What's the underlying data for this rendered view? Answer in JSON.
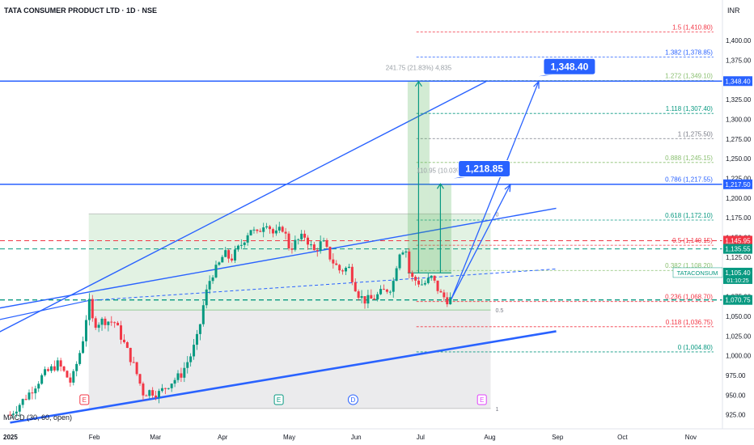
{
  "header": {
    "symbol_title": "TATA CONSUMER PRODUCT LTD · 1D · NSE",
    "currency": "INR"
  },
  "indicator_label": "MACD (30, 60, open)",
  "chart_data": {
    "type": "candlestick",
    "y_ticks": [
      925,
      950,
      975,
      1000,
      1025,
      1050,
      1075,
      1100,
      1125,
      1150,
      1175,
      1200,
      1225,
      1250,
      1275,
      1300,
      1325,
      1350,
      1375,
      1400
    ],
    "y_tick_labels": [
      "925.00",
      "950.00",
      "975.00",
      "1,000.00",
      "1,025.00",
      "1,050.00",
      "1,075.00",
      "1,100.00",
      "1,125.00",
      "1,150.00",
      "1,175.00",
      "1,200.00",
      "1,225.00",
      "1,250.00",
      "1,275.00",
      "1,300.00",
      "1,325.00",
      "1,350.00",
      "1,375.00",
      "1,400.00"
    ],
    "x_ticks": [
      {
        "label": "2025",
        "day": 0,
        "bold": true
      },
      {
        "label": "Feb",
        "day": 31
      },
      {
        "label": "Mar",
        "day": 59
      },
      {
        "label": "Apr",
        "day": 90
      },
      {
        "label": "May",
        "day": 120
      },
      {
        "label": "Jun",
        "day": 151
      },
      {
        "label": "Jul",
        "day": 181
      },
      {
        "label": "Aug",
        "day": 212
      },
      {
        "label": "Sep",
        "day": 243
      },
      {
        "label": "Oct",
        "day": 273
      },
      {
        "label": "Nov",
        "day": 304
      }
    ],
    "price_path": [
      [
        -5,
        925
      ],
      [
        3,
        950
      ],
      [
        10,
        975
      ],
      [
        17,
        990
      ],
      [
        23,
        965
      ],
      [
        28,
        1015
      ],
      [
        31,
        1070
      ],
      [
        33,
        1040
      ],
      [
        38,
        1045
      ],
      [
        43,
        1042
      ],
      [
        48,
        1010
      ],
      [
        52,
        985
      ],
      [
        56,
        952
      ],
      [
        59,
        955
      ],
      [
        63,
        952
      ],
      [
        68,
        965
      ],
      [
        73,
        975
      ],
      [
        78,
        1002
      ],
      [
        81,
        1025
      ],
      [
        84,
        1072
      ],
      [
        87,
        1102
      ],
      [
        90,
        1112
      ],
      [
        93,
        1130
      ],
      [
        96,
        1122
      ],
      [
        101,
        1142
      ],
      [
        105,
        1162
      ],
      [
        108,
        1153
      ],
      [
        112,
        1172
      ],
      [
        114,
        1162
      ],
      [
        116,
        1152
      ],
      [
        120,
        1163
      ],
      [
        123,
        1135
      ],
      [
        126,
        1145
      ],
      [
        130,
        1152
      ],
      [
        134,
        1132
      ],
      [
        138,
        1145
      ],
      [
        142,
        1122
      ],
      [
        146,
        1108
      ],
      [
        150,
        1112
      ],
      [
        154,
        1080
      ],
      [
        157,
        1070
      ],
      [
        161,
        1072
      ],
      [
        165,
        1080
      ],
      [
        170,
        1088
      ],
      [
        173,
        1132
      ],
      [
        176,
        1138
      ],
      [
        178,
        1100
      ],
      [
        181,
        1095
      ],
      [
        184,
        1090
      ],
      [
        188,
        1099
      ],
      [
        192,
        1078
      ],
      [
        195,
        1071
      ],
      [
        197,
        1072
      ]
    ],
    "last_price": 1105.4,
    "candle_label": "TATACONSUM",
    "countdown": "01:10:25",
    "horizontal_levels": [
      {
        "price": 1348.4,
        "label": "1,348.40",
        "color": "#2962ff",
        "style": "solid",
        "width": 1.6
      },
      {
        "price": 1217.5,
        "label": "1,217.50",
        "color": "#2962ff",
        "style": "solid",
        "width": 1.6
      },
      {
        "price": 1145.95,
        "label": "1,145.95",
        "color": "#f23645",
        "style": "dashed",
        "width": 1
      },
      {
        "price": 1135.55,
        "label": "1,135.55",
        "color": "#089981",
        "style": "dashed",
        "width": 1
      },
      {
        "price": 1070.75,
        "label": "1,070.75",
        "color": "#089981",
        "style": "dashed",
        "width": 1.4
      }
    ],
    "fib_levels": [
      {
        "price": 1410.8,
        "label": "1.5 (1,410.80)",
        "color": "#f23645"
      },
      {
        "price": 1378.85,
        "label": "1.382 (1,378.85)",
        "color": "#2962ff"
      },
      {
        "price": 1349.1,
        "label": "1.272 (1,349.10)",
        "color": "#89bf6f"
      },
      {
        "price": 1307.4,
        "label": "1.118 (1,307.40)",
        "color": "#089981"
      },
      {
        "price": 1275.5,
        "label": "1 (1,275.50)",
        "color": "#787b86"
      },
      {
        "price": 1245.15,
        "label": "0.888 (1,245.15)",
        "color": "#89bf6f"
      },
      {
        "price": 1217.55,
        "label": "0.786 (1,217.55)",
        "color": "#2962ff"
      },
      {
        "price": 1172.1,
        "label": "0.618 (1,172.10)",
        "color": "#089981"
      },
      {
        "price": 1140.15,
        "label": "0.5 (1,140.15)",
        "color": "#f23645"
      },
      {
        "price": 1108.2,
        "label": "0.382 (1,108.20)",
        "color": "#89bf6f"
      },
      {
        "price": 1068.7,
        "label": "0.236 (1,068.70)",
        "color": "#f23645"
      },
      {
        "price": 1036.75,
        "label": "0.118 (1,036.75)",
        "color": "#f23645"
      },
      {
        "price": 1004.8,
        "label": "0 (1,004.80)",
        "color": "#089981"
      }
    ],
    "range_box": {
      "day_start": 31,
      "day_end": 215,
      "top": 1180,
      "mid": 1058,
      "bottom": 933,
      "labels": [
        "0",
        "0.5",
        "1"
      ]
    },
    "trendlines": [
      {
        "from": [
          -45,
          980
        ],
        "to": [
          213,
          1348
        ],
        "color": "#2962ff",
        "width": 1.4
      },
      {
        "from": [
          -45,
          1043
        ],
        "to": [
          245,
          1187
        ],
        "color": "#2962ff",
        "width": 1.4
      },
      {
        "from": [
          -5,
          915
        ],
        "to": [
          245,
          1031
        ],
        "color": "#2962ff",
        "width": 2.6
      },
      {
        "from": [
          -45,
          1025
        ],
        "to": [
          31,
          1070
        ],
        "color": "#2962ff",
        "width": 1.2
      },
      {
        "from": [
          31,
          1070
        ],
        "to": [
          245,
          1110
        ],
        "color": "#2962ff",
        "width": 1,
        "dashed": true
      }
    ],
    "projections": [
      {
        "from": [
          197,
          1072
        ],
        "to": [
          237,
          1348
        ],
        "color": "#2962ff"
      },
      {
        "from": [
          197,
          1072
        ],
        "to": [
          224,
          1217
        ],
        "color": "#2962ff"
      }
    ],
    "callouts": [
      {
        "text": "1,348.40",
        "day": 237,
        "price": 1348.4
      },
      {
        "text": "1,218.85",
        "day": 198,
        "price": 1218.85
      }
    ],
    "measures": [
      {
        "label": "241.75 (21.83%) 4,835",
        "day_start": 177,
        "day_end": 187,
        "from": 1105,
        "to": 1348
      },
      {
        "label": "110.95 (10.03%)",
        "day_start": 187,
        "day_end": 197,
        "from": 1105,
        "to": 1218
      }
    ],
    "events": [
      {
        "letter": "E",
        "day": 29,
        "color": "#f23645"
      },
      {
        "letter": "E",
        "day": 118,
        "color": "#089981"
      },
      {
        "letter": "D",
        "day": 152,
        "color": "#2962ff"
      },
      {
        "letter": "E",
        "day": 211,
        "color": "#e040fb"
      }
    ]
  }
}
